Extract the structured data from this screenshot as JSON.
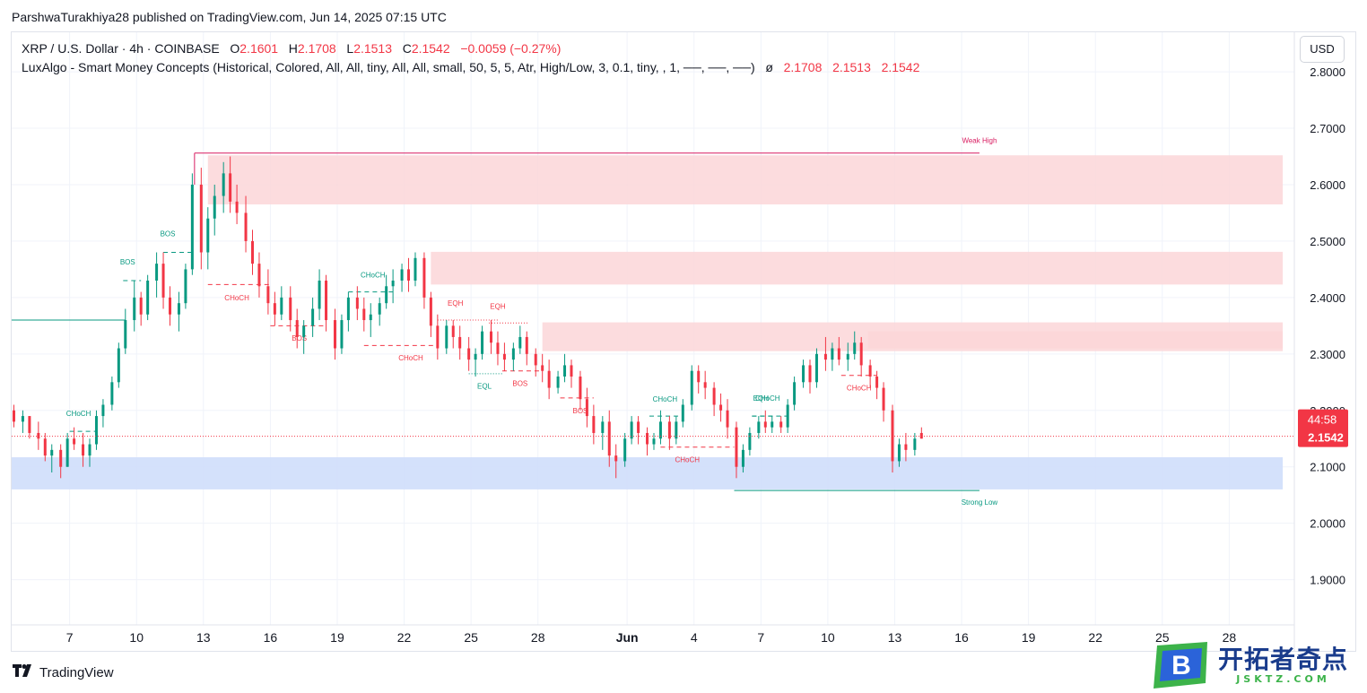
{
  "publisher_line": "ParshwaTurakhiya28 published on TradingView.com, Jun 14, 2025 07:15 UTC",
  "legend": {
    "symbol": "XRP / U.S. Dollar · 4h · COINBASE",
    "o_label": "O",
    "o_value": "2.1601",
    "h_label": "H",
    "h_value": "2.1708",
    "l_label": "L",
    "l_value": "2.1513",
    "c_label": "C",
    "c_value": "2.1542",
    "change": "−0.0059 (−0.27%)",
    "indicator": "LuxAlgo - Smart Money Concepts (Historical, Colored, All, All, tiny, All, All, small, 50, 5, 5, Atr, High/Low, 3, 0.1, tiny, , 1, ──, ──, ──)",
    "indicator_mark": "ø",
    "ind_v1": "2.1708",
    "ind_v2": "2.1513",
    "ind_v3": "2.1542"
  },
  "currency": "USD",
  "price_badge": {
    "countdown": "44:58",
    "price": "2.1542"
  },
  "branding": {
    "tradingview": "TradingView",
    "watermark_cn": "开拓者奇点",
    "watermark_url": "JSKTZ.COM",
    "watermark_letter": "B"
  },
  "colors": {
    "up": "#089981",
    "down": "#f23645",
    "supply_zone": "#fbd6d8",
    "demand_zone": "#cfdefb",
    "structure_bull": "#089981",
    "structure_bear": "#f23645"
  },
  "chart_data": {
    "type": "candlestick",
    "symbol": "XRP / U.S. Dollar",
    "interval": "4h",
    "y_ticks": [
      "2.8000",
      "2.7000",
      "2.6000",
      "2.5000",
      "2.4000",
      "2.3000",
      "2.2000",
      "2.1000",
      "2.0000",
      "1.9000"
    ],
    "y_tick_values": [
      2.8,
      2.7,
      2.6,
      2.5,
      2.4,
      2.3,
      2.2,
      2.1,
      2.0,
      1.9
    ],
    "ylim": [
      1.82,
      2.87
    ],
    "x_ticks": [
      "7",
      "10",
      "13",
      "16",
      "19",
      "22",
      "25",
      "28",
      "Jun",
      "4",
      "7",
      "10",
      "13",
      "16",
      "19",
      "22",
      "25",
      "28"
    ],
    "x_tick_bold": [
      false,
      false,
      false,
      false,
      false,
      false,
      false,
      false,
      true,
      false,
      false,
      false,
      false,
      false,
      false,
      false,
      false,
      false
    ],
    "x_tick_days": [
      7,
      10,
      13,
      16,
      19,
      22,
      25,
      28,
      32,
      35,
      38,
      41,
      44,
      47,
      50,
      53,
      56,
      59
    ],
    "xlim_days": [
      4.4,
      61.8
    ],
    "last_price": 2.1542,
    "zones": [
      {
        "kind": "supply",
        "from_day": 13.2,
        "to_day": 61.4,
        "top": 2.652,
        "bottom": 2.565
      },
      {
        "kind": "supply",
        "from_day": 23.2,
        "to_day": 61.4,
        "top": 2.481,
        "bottom": 2.423
      },
      {
        "kind": "supply",
        "from_day": 28.2,
        "to_day": 61.4,
        "top": 2.356,
        "bottom": 2.305
      },
      {
        "kind": "supply",
        "from_day": 42.8,
        "to_day": 61.4,
        "top": 2.34,
        "bottom": 2.31
      },
      {
        "kind": "demand",
        "from_day": 4.4,
        "to_day": 61.4,
        "top": 2.117,
        "bottom": 2.06
      }
    ],
    "levels": [
      {
        "label": "Weak High",
        "price": 2.656,
        "from_day": 12.6,
        "to_day": 47.8,
        "color": "#d81b60"
      },
      {
        "label": "Strong Low",
        "price": 2.058,
        "from_day": 36.8,
        "to_day": 47.8,
        "color": "#089981"
      },
      {
        "label": "",
        "price": 2.36,
        "from_day": 4.4,
        "to_day": 9.5,
        "color": "#089981"
      }
    ],
    "structure_labels": [
      {
        "text": "CHoCH",
        "day": 7.4,
        "price": 2.163,
        "lbl_price": 2.195,
        "from_day": 7.0,
        "to_day": 8.2,
        "color": "#089981",
        "style": "dashed"
      },
      {
        "text": "BOS",
        "day": 9.6,
        "price": 2.43,
        "lbl_price": 2.463,
        "from_day": 9.4,
        "to_day": 10.2,
        "color": "#089981",
        "style": "dashed"
      },
      {
        "text": "BOS",
        "day": 11.4,
        "price": 2.48,
        "lbl_price": 2.513,
        "from_day": 11.2,
        "to_day": 12.6,
        "color": "#089981",
        "style": "dashed"
      },
      {
        "text": "CHoCH",
        "day": 14.5,
        "price": 2.423,
        "lbl_price": 2.4,
        "from_day": 13.2,
        "to_day": 16.0,
        "color": "#f23645",
        "style": "dashed"
      },
      {
        "text": "BOS",
        "day": 17.3,
        "price": 2.35,
        "lbl_price": 2.328,
        "from_day": 16.0,
        "to_day": 18.5,
        "color": "#f23645",
        "style": "dashed"
      },
      {
        "text": "CHoCH",
        "day": 20.6,
        "price": 2.41,
        "lbl_price": 2.44,
        "from_day": 19.5,
        "to_day": 21.6,
        "color": "#089981",
        "style": "dashed"
      },
      {
        "text": "CHoCH",
        "day": 22.3,
        "price": 2.315,
        "lbl_price": 2.293,
        "from_day": 20.2,
        "to_day": 23.5,
        "color": "#f23645",
        "style": "dashed"
      },
      {
        "text": "EQH",
        "day": 24.3,
        "price": 2.36,
        "lbl_price": 2.39,
        "from_day": 23.5,
        "to_day": 26.2,
        "color": "#f23645",
        "style": "dotted"
      },
      {
        "text": "EQH",
        "day": 26.2,
        "price": 2.355,
        "lbl_price": 2.385,
        "from_day": 25.8,
        "to_day": 27.6,
        "color": "#f23645",
        "style": "dotted"
      },
      {
        "text": "EQL",
        "day": 25.6,
        "price": 2.265,
        "lbl_price": 2.243,
        "from_day": 24.9,
        "to_day": 26.4,
        "color": "#089981",
        "style": "dotted"
      },
      {
        "text": "BOS",
        "day": 27.2,
        "price": 2.27,
        "lbl_price": 2.248,
        "from_day": 26.4,
        "to_day": 28.2,
        "color": "#f23645",
        "style": "dashed"
      },
      {
        "text": "BOS",
        "day": 29.9,
        "price": 2.222,
        "lbl_price": 2.2,
        "from_day": 29.0,
        "to_day": 30.5,
        "color": "#f23645",
        "style": "dashed"
      },
      {
        "text": "CHoCH",
        "day": 33.7,
        "price": 2.19,
        "lbl_price": 2.22,
        "from_day": 33.0,
        "to_day": 34.5,
        "color": "#089981",
        "style": "dashed"
      },
      {
        "text": "CHoCH",
        "day": 34.7,
        "price": 2.135,
        "lbl_price": 2.113,
        "from_day": 33.5,
        "to_day": 36.8,
        "color": "#f23645",
        "style": "dashed"
      },
      {
        "text": "EQH",
        "day": 38.0,
        "price": 2.19,
        "lbl_price": 2.222,
        "from_day": 37.6,
        "to_day": 38.6,
        "color": "#089981",
        "style": "dashed"
      },
      {
        "text": "CHoCH",
        "day": 38.3,
        "price": 2.19,
        "lbl_price": 2.222,
        "from_day": 37.6,
        "to_day": 39.2,
        "color": "#089981",
        "style": "dashed"
      },
      {
        "text": "CHoCH",
        "day": 42.4,
        "price": 2.262,
        "lbl_price": 2.24,
        "from_day": 41.6,
        "to_day": 43.2,
        "color": "#f23645",
        "style": "dashed"
      }
    ],
    "candles": [
      [
        4.5,
        2.2,
        2.21,
        2.17,
        2.18
      ],
      [
        4.9,
        2.18,
        2.2,
        2.16,
        2.19
      ],
      [
        5.2,
        2.19,
        2.19,
        2.15,
        2.16
      ],
      [
        5.6,
        2.16,
        2.18,
        2.13,
        2.15
      ],
      [
        5.9,
        2.15,
        2.16,
        2.11,
        2.12
      ],
      [
        6.2,
        2.12,
        2.14,
        2.09,
        2.13
      ],
      [
        6.6,
        2.13,
        2.14,
        2.08,
        2.1
      ],
      [
        6.9,
        2.1,
        2.16,
        2.1,
        2.15
      ],
      [
        7.2,
        2.15,
        2.17,
        2.13,
        2.14
      ],
      [
        7.6,
        2.14,
        2.16,
        2.1,
        2.12
      ],
      [
        7.9,
        2.12,
        2.15,
        2.1,
        2.14
      ],
      [
        8.2,
        2.14,
        2.2,
        2.13,
        2.19
      ],
      [
        8.5,
        2.19,
        2.22,
        2.17,
        2.21
      ],
      [
        8.9,
        2.21,
        2.26,
        2.2,
        2.25
      ],
      [
        9.2,
        2.25,
        2.32,
        2.24,
        2.31
      ],
      [
        9.5,
        2.31,
        2.38,
        2.3,
        2.36
      ],
      [
        9.9,
        2.36,
        2.43,
        2.34,
        2.4
      ],
      [
        10.2,
        2.4,
        2.41,
        2.35,
        2.37
      ],
      [
        10.5,
        2.37,
        2.44,
        2.36,
        2.43
      ],
      [
        10.9,
        2.43,
        2.48,
        2.4,
        2.46
      ],
      [
        11.2,
        2.46,
        2.48,
        2.38,
        2.4
      ],
      [
        11.5,
        2.4,
        2.42,
        2.35,
        2.37
      ],
      [
        11.9,
        2.37,
        2.41,
        2.34,
        2.39
      ],
      [
        12.2,
        2.39,
        2.46,
        2.38,
        2.45
      ],
      [
        12.5,
        2.45,
        2.62,
        2.44,
        2.6
      ],
      [
        12.9,
        2.6,
        2.63,
        2.45,
        2.48
      ],
      [
        13.2,
        2.48,
        2.56,
        2.45,
        2.54
      ],
      [
        13.5,
        2.54,
        2.6,
        2.51,
        2.58
      ],
      [
        13.9,
        2.58,
        2.64,
        2.55,
        2.62
      ],
      [
        14.2,
        2.62,
        2.65,
        2.55,
        2.57
      ],
      [
        14.5,
        2.57,
        2.6,
        2.53,
        2.55
      ],
      [
        14.9,
        2.55,
        2.58,
        2.48,
        2.5
      ],
      [
        15.2,
        2.5,
        2.52,
        2.44,
        2.46
      ],
      [
        15.5,
        2.46,
        2.48,
        2.4,
        2.42
      ],
      [
        15.9,
        2.42,
        2.45,
        2.37,
        2.39
      ],
      [
        16.2,
        2.39,
        2.41,
        2.35,
        2.37
      ],
      [
        16.5,
        2.37,
        2.42,
        2.36,
        2.4
      ],
      [
        16.9,
        2.4,
        2.42,
        2.34,
        2.36
      ],
      [
        17.2,
        2.36,
        2.38,
        2.31,
        2.33
      ],
      [
        17.5,
        2.33,
        2.36,
        2.3,
        2.35
      ],
      [
        17.9,
        2.35,
        2.4,
        2.33,
        2.38
      ],
      [
        18.2,
        2.38,
        2.45,
        2.36,
        2.43
      ],
      [
        18.5,
        2.43,
        2.44,
        2.34,
        2.36
      ],
      [
        18.9,
        2.36,
        2.38,
        2.29,
        2.31
      ],
      [
        19.2,
        2.31,
        2.37,
        2.3,
        2.36
      ],
      [
        19.5,
        2.36,
        2.41,
        2.34,
        2.4
      ],
      [
        19.9,
        2.4,
        2.42,
        2.36,
        2.38
      ],
      [
        20.2,
        2.38,
        2.4,
        2.34,
        2.36
      ],
      [
        20.5,
        2.36,
        2.39,
        2.33,
        2.37
      ],
      [
        20.9,
        2.37,
        2.4,
        2.35,
        2.39
      ],
      [
        21.2,
        2.39,
        2.44,
        2.38,
        2.42
      ],
      [
        21.5,
        2.42,
        2.45,
        2.39,
        2.43
      ],
      [
        21.9,
        2.43,
        2.46,
        2.41,
        2.45
      ],
      [
        22.2,
        2.45,
        2.47,
        2.41,
        2.43
      ],
      [
        22.5,
        2.43,
        2.48,
        2.42,
        2.47
      ],
      [
        22.9,
        2.47,
        2.48,
        2.38,
        2.4
      ],
      [
        23.2,
        2.4,
        2.41,
        2.33,
        2.35
      ],
      [
        23.5,
        2.35,
        2.37,
        2.29,
        2.31
      ],
      [
        23.9,
        2.31,
        2.36,
        2.3,
        2.35
      ],
      [
        24.2,
        2.35,
        2.36,
        2.31,
        2.33
      ],
      [
        24.5,
        2.33,
        2.35,
        2.29,
        2.31
      ],
      [
        24.9,
        2.31,
        2.33,
        2.27,
        2.29
      ],
      [
        25.2,
        2.29,
        2.31,
        2.26,
        2.3
      ],
      [
        25.5,
        2.3,
        2.35,
        2.29,
        2.34
      ],
      [
        25.9,
        2.34,
        2.36,
        2.3,
        2.32
      ],
      [
        26.2,
        2.32,
        2.34,
        2.28,
        2.3
      ],
      [
        26.5,
        2.3,
        2.32,
        2.27,
        2.29
      ],
      [
        26.9,
        2.29,
        2.32,
        2.27,
        2.31
      ],
      [
        27.2,
        2.31,
        2.35,
        2.3,
        2.33
      ],
      [
        27.5,
        2.33,
        2.34,
        2.28,
        2.3
      ],
      [
        27.9,
        2.3,
        2.31,
        2.26,
        2.28
      ],
      [
        28.2,
        2.28,
        2.3,
        2.25,
        2.27
      ],
      [
        28.5,
        2.27,
        2.29,
        2.22,
        2.24
      ],
      [
        28.9,
        2.24,
        2.27,
        2.23,
        2.26
      ],
      [
        29.2,
        2.26,
        2.3,
        2.25,
        2.28
      ],
      [
        29.5,
        2.28,
        2.29,
        2.24,
        2.26
      ],
      [
        29.9,
        2.26,
        2.27,
        2.2,
        2.22
      ],
      [
        30.2,
        2.22,
        2.24,
        2.17,
        2.19
      ],
      [
        30.5,
        2.19,
        2.21,
        2.14,
        2.16
      ],
      [
        30.9,
        2.16,
        2.19,
        2.13,
        2.18
      ],
      [
        31.2,
        2.18,
        2.2,
        2.1,
        2.12
      ],
      [
        31.5,
        2.12,
        2.14,
        2.08,
        2.11
      ],
      [
        31.9,
        2.11,
        2.16,
        2.1,
        2.15
      ],
      [
        32.2,
        2.15,
        2.19,
        2.14,
        2.18
      ],
      [
        32.5,
        2.18,
        2.19,
        2.14,
        2.16
      ],
      [
        32.9,
        2.16,
        2.17,
        2.12,
        2.14
      ],
      [
        33.2,
        2.14,
        2.16,
        2.13,
        2.15
      ],
      [
        33.5,
        2.15,
        2.2,
        2.14,
        2.18
      ],
      [
        33.9,
        2.18,
        2.19,
        2.13,
        2.15
      ],
      [
        34.2,
        2.15,
        2.19,
        2.14,
        2.18
      ],
      [
        34.5,
        2.18,
        2.22,
        2.17,
        2.21
      ],
      [
        34.9,
        2.21,
        2.28,
        2.2,
        2.27
      ],
      [
        35.2,
        2.27,
        2.28,
        2.23,
        2.25
      ],
      [
        35.5,
        2.25,
        2.27,
        2.22,
        2.24
      ],
      [
        35.9,
        2.24,
        2.25,
        2.19,
        2.21
      ],
      [
        36.2,
        2.21,
        2.23,
        2.18,
        2.2
      ],
      [
        36.5,
        2.2,
        2.22,
        2.15,
        2.17
      ],
      [
        36.9,
        2.17,
        2.18,
        2.08,
        2.1
      ],
      [
        37.2,
        2.1,
        2.14,
        2.09,
        2.13
      ],
      [
        37.5,
        2.13,
        2.17,
        2.12,
        2.16
      ],
      [
        37.9,
        2.16,
        2.19,
        2.15,
        2.18
      ],
      [
        38.2,
        2.18,
        2.2,
        2.16,
        2.17
      ],
      [
        38.5,
        2.17,
        2.19,
        2.16,
        2.18
      ],
      [
        38.9,
        2.18,
        2.19,
        2.16,
        2.17
      ],
      [
        39.2,
        2.17,
        2.22,
        2.16,
        2.21
      ],
      [
        39.5,
        2.21,
        2.26,
        2.2,
        2.25
      ],
      [
        39.9,
        2.25,
        2.29,
        2.24,
        2.28
      ],
      [
        40.2,
        2.28,
        2.29,
        2.23,
        2.25
      ],
      [
        40.5,
        2.25,
        2.31,
        2.24,
        2.3
      ],
      [
        40.9,
        2.3,
        2.33,
        2.27,
        2.29
      ],
      [
        41.2,
        2.29,
        2.32,
        2.27,
        2.31
      ],
      [
        41.5,
        2.31,
        2.33,
        2.28,
        2.29
      ],
      [
        41.9,
        2.29,
        2.32,
        2.27,
        2.3
      ],
      [
        42.2,
        2.3,
        2.34,
        2.29,
        2.32
      ],
      [
        42.5,
        2.32,
        2.33,
        2.26,
        2.28
      ],
      [
        42.9,
        2.28,
        2.29,
        2.24,
        2.26
      ],
      [
        43.2,
        2.26,
        2.27,
        2.22,
        2.24
      ],
      [
        43.5,
        2.24,
        2.25,
        2.18,
        2.2
      ],
      [
        43.9,
        2.2,
        2.21,
        2.09,
        2.11
      ],
      [
        44.2,
        2.11,
        2.15,
        2.1,
        2.14
      ],
      [
        44.5,
        2.14,
        2.16,
        2.11,
        2.13
      ],
      [
        44.9,
        2.13,
        2.16,
        2.12,
        2.15
      ],
      [
        45.2,
        2.16,
        2.17,
        2.15,
        2.15
      ]
    ]
  }
}
